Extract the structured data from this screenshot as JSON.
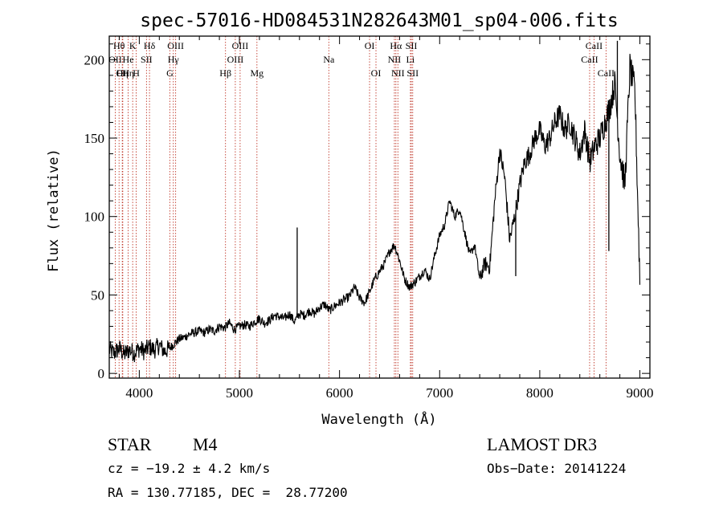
{
  "chart_data": {
    "type": "line",
    "title": "spec-57016-HD084531N282643M01_sp04-006.fits",
    "xlabel": "Wavelength (Å)",
    "ylabel": "Flux (relative)",
    "xlim": [
      3700,
      9100
    ],
    "ylim": [
      -3,
      215
    ],
    "x_ticks": [
      4000,
      5000,
      6000,
      7000,
      8000,
      9000
    ],
    "y_ticks": [
      0,
      50,
      100,
      150,
      200
    ],
    "grid": false,
    "spectrum": {
      "x": [
        3700,
        3750,
        3800,
        3850,
        3900,
        3950,
        4000,
        4050,
        4100,
        4150,
        4200,
        4250,
        4300,
        4350,
        4400,
        4450,
        4500,
        4550,
        4600,
        4650,
        4700,
        4750,
        4800,
        4850,
        4900,
        4950,
        5000,
        5050,
        5100,
        5150,
        5200,
        5250,
        5300,
        5350,
        5400,
        5450,
        5500,
        5550,
        5600,
        5650,
        5700,
        5750,
        5800,
        5850,
        5900,
        5950,
        6000,
        6050,
        6100,
        6150,
        6200,
        6250,
        6300,
        6350,
        6400,
        6450,
        6500,
        6550,
        6600,
        6650,
        6700,
        6750,
        6800,
        6850,
        6900,
        6950,
        7000,
        7050,
        7100,
        7150,
        7200,
        7250,
        7300,
        7350,
        7400,
        7450,
        7500,
        7550,
        7600,
        7650,
        7700,
        7750,
        7800,
        7850,
        7900,
        7950,
        8000,
        8050,
        8100,
        8150,
        8200,
        8250,
        8300,
        8350,
        8400,
        8450,
        8500,
        8550,
        8600,
        8650,
        8700,
        8750,
        8800,
        8850,
        8900,
        8950,
        9000
      ],
      "y": [
        15,
        13,
        16,
        12,
        15,
        13,
        16,
        14,
        17,
        15,
        18,
        14,
        16,
        19,
        22,
        23,
        25,
        26,
        27,
        26,
        28,
        27,
        30,
        29,
        32,
        28,
        30,
        31,
        30,
        33,
        35,
        32,
        34,
        37,
        36,
        35,
        38,
        33,
        38,
        37,
        40,
        38,
        42,
        44,
        40,
        43,
        45,
        47,
        49,
        55,
        48,
        45,
        52,
        60,
        65,
        70,
        78,
        82,
        72,
        60,
        55,
        58,
        62,
        66,
        60,
        75,
        88,
        95,
        110,
        100,
        105,
        90,
        75,
        82,
        60,
        70,
        68,
        110,
        142,
        125,
        85,
        100,
        120,
        135,
        140,
        150,
        155,
        145,
        150,
        160,
        165,
        155,
        160,
        150,
        140,
        155,
        135,
        145,
        150,
        160,
        170,
        185,
        140,
        120,
        195,
        180,
        60
      ]
    },
    "spikes": [
      {
        "x": 5577,
        "y": 93
      },
      {
        "x": 8775,
        "y": 212
      },
      {
        "x": 8690,
        "y": 78
      },
      {
        "x": 7760,
        "y": 62
      }
    ],
    "lines": [
      {
        "wave": 3798,
        "label": "Hθ",
        "row": 1
      },
      {
        "wave": 3760,
        "label": "OII",
        "row": 2
      },
      {
        "wave": 3830,
        "label": "Hη",
        "row": 3
      },
      {
        "wave": 3835,
        "label": "OII",
        "row": 3
      },
      {
        "wave": 3889,
        "label": "He",
        "row": 2
      },
      {
        "wave": 3889,
        "label": "Hη",
        "row": 3
      },
      {
        "wave": 3934,
        "label": "K",
        "row": 1
      },
      {
        "wave": 3969,
        "label": "H",
        "row": 3
      },
      {
        "wave": 4072,
        "label": "SII",
        "row": 2
      },
      {
        "wave": 4102,
        "label": "Hδ",
        "row": 1
      },
      {
        "wave": 4340,
        "label": "Hγ",
        "row": 2
      },
      {
        "wave": 4363,
        "label": "OIII",
        "row": 1
      },
      {
        "wave": 4305,
        "label": "G",
        "row": 3
      },
      {
        "wave": 4861,
        "label": "Hβ",
        "row": 3
      },
      {
        "wave": 4959,
        "label": "OIII",
        "row": 2
      },
      {
        "wave": 5007,
        "label": "OIII",
        "row": 1
      },
      {
        "wave": 5175,
        "label": "Mg",
        "row": 3
      },
      {
        "wave": 5893,
        "label": "Na",
        "row": 2
      },
      {
        "wave": 6300,
        "label": "OI",
        "row": 1
      },
      {
        "wave": 6364,
        "label": "OI",
        "row": 3
      },
      {
        "wave": 6548,
        "label": "NII",
        "row": 2
      },
      {
        "wave": 6563,
        "label": "Hα",
        "row": 1
      },
      {
        "wave": 6583,
        "label": "NII",
        "row": 3
      },
      {
        "wave": 6708,
        "label": "Li",
        "row": 2
      },
      {
        "wave": 6717,
        "label": "SII",
        "row": 1
      },
      {
        "wave": 6731,
        "label": "SII",
        "row": 3
      },
      {
        "wave": 8498,
        "label": "CaII",
        "row": 2
      },
      {
        "wave": 8542,
        "label": "CaII",
        "row": 1
      },
      {
        "wave": 8662,
        "label": "CaII",
        "row": 3
      }
    ]
  },
  "info": {
    "object_class": "STAR",
    "subclass": "M4",
    "survey": "LAMOST DR3",
    "cz": "cz = −19.2 ± 4.2 km/s",
    "obs_date": "Obs−Date: 20141224",
    "coords": "RA = 130.77185, DEC =  28.77200"
  },
  "colors": {
    "spectrum": "#000000",
    "line_markers": "#c0392b",
    "axes": "#000000"
  }
}
